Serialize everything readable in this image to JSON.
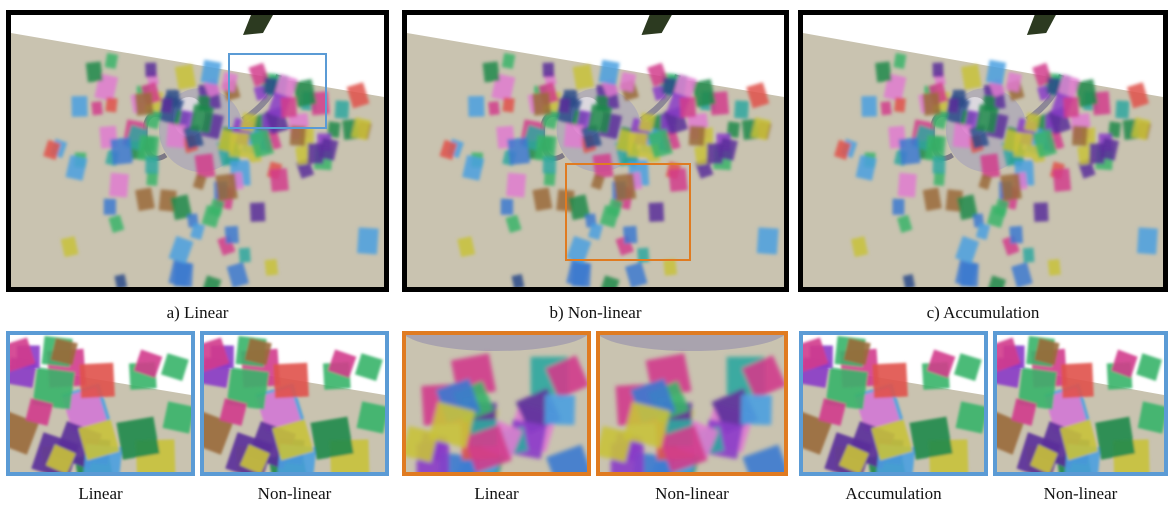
{
  "main_panels": [
    {
      "caption": "a) Linear"
    },
    {
      "caption": "b) Non-linear"
    },
    {
      "caption": "c) Accumulation"
    }
  ],
  "insets": [
    {
      "caption": "Linear",
      "highlight_color": "#5b9bd5"
    },
    {
      "caption": "Non-linear",
      "highlight_color": "#5b9bd5"
    },
    {
      "caption": "Linear",
      "highlight_color": "#e07b21"
    },
    {
      "caption": "Non-linear",
      "highlight_color": "#e07b21"
    },
    {
      "caption": "Accumulation",
      "highlight_color": "#5b9bd5"
    },
    {
      "caption": "Non-linear",
      "highlight_color": "#5b9bd5"
    }
  ],
  "colors": {
    "floor": "#c9c3b0",
    "backdrop": "#ffffff",
    "main_border": "#000000",
    "blue_highlight": "#5b9bd5",
    "orange_highlight": "#e07b21"
  }
}
